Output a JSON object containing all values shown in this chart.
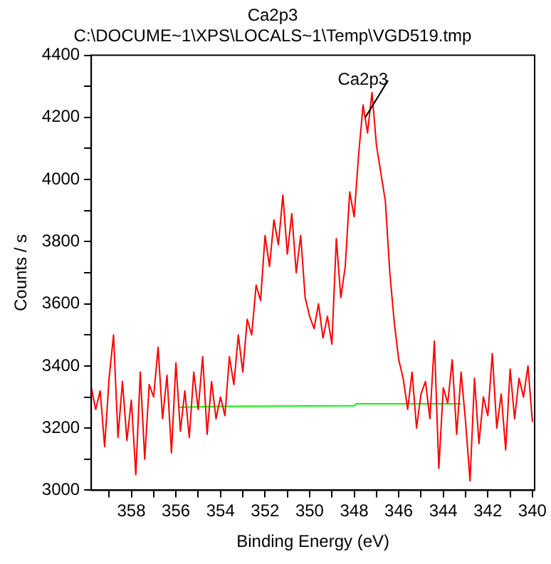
{
  "chart_data": {
    "type": "line",
    "title": "Ca2p3",
    "subtitle": "C:\\DOCUME~1\\XPS\\LOCALS~1\\Temp\\VGD519.tmp",
    "xlabel": "Binding Energy (eV)",
    "ylabel": "Counts / s",
    "xlim": [
      359.8,
      339.9
    ],
    "ylim": [
      3000,
      4400
    ],
    "xticks": [
      {
        "value": 359,
        "label": null
      },
      358,
      {
        "value": 357,
        "label": null
      },
      356,
      {
        "value": 355,
        "label": null
      },
      354,
      {
        "value": 353,
        "label": null
      },
      352,
      {
        "value": 351,
        "label": null
      },
      350,
      {
        "value": 349,
        "label": null
      },
      348,
      {
        "value": 347,
        "label": null
      },
      346,
      {
        "value": 345,
        "label": null
      },
      344,
      {
        "value": 343,
        "label": null
      },
      342,
      {
        "value": 341,
        "label": null
      },
      340
    ],
    "yticks": [
      3000,
      {
        "value": 3100,
        "label": null
      },
      3200,
      {
        "value": 3300,
        "label": null
      },
      3400,
      {
        "value": 3500,
        "label": null
      },
      3600,
      {
        "value": 3700,
        "label": null
      },
      3800,
      {
        "value": 3900,
        "label": null
      },
      4000,
      {
        "value": 4100,
        "label": null
      },
      4200,
      {
        "value": 4300,
        "label": null
      },
      4400
    ],
    "grid": false,
    "legend": false,
    "marker": "none",
    "annotations": [
      {
        "text": "Ca2p3",
        "x": 347.5,
        "y": 4200
      }
    ],
    "series": [
      {
        "color": "#ff0000",
        "x": [
          359.8,
          359.6,
          359.4,
          359.2,
          359.0,
          358.8,
          358.6,
          358.4,
          358.2,
          358.0,
          357.8,
          357.6,
          357.4,
          357.2,
          357.0,
          356.8,
          356.6,
          356.4,
          356.2,
          356.0,
          355.8,
          355.6,
          355.4,
          355.2,
          355.0,
          354.8,
          354.6,
          354.4,
          354.2,
          354.0,
          353.8,
          353.6,
          353.4,
          353.2,
          353.0,
          352.8,
          352.6,
          352.4,
          352.2,
          352.0,
          351.8,
          351.6,
          351.4,
          351.2,
          351.0,
          350.8,
          350.6,
          350.4,
          350.2,
          350.0,
          349.8,
          349.6,
          349.4,
          349.2,
          349.0,
          348.8,
          348.6,
          348.4,
          348.2,
          348.0,
          347.8,
          347.6,
          347.4,
          347.2,
          347.0,
          346.8,
          346.6,
          346.4,
          346.2,
          346.0,
          345.8,
          345.6,
          345.4,
          345.2,
          345.0,
          344.8,
          344.6,
          344.4,
          344.2,
          344.0,
          343.8,
          343.6,
          343.4,
          343.2,
          343.0,
          342.8,
          342.6,
          342.4,
          342.2,
          342.0,
          341.8,
          341.6,
          341.4,
          341.2,
          341.0,
          340.8,
          340.6,
          340.4,
          340.2,
          340.0
        ],
        "values": [
          3330,
          3260,
          3320,
          3140,
          3360,
          3500,
          3170,
          3350,
          3160,
          3290,
          3050,
          3380,
          3100,
          3340,
          3300,
          3460,
          3230,
          3370,
          3120,
          3410,
          3190,
          3320,
          3170,
          3380,
          3260,
          3430,
          3180,
          3350,
          3230,
          3300,
          3240,
          3430,
          3340,
          3500,
          3380,
          3550,
          3500,
          3660,
          3610,
          3820,
          3720,
          3870,
          3790,
          3950,
          3760,
          3890,
          3700,
          3820,
          3620,
          3560,
          3520,
          3600,
          3490,
          3560,
          3470,
          3810,
          3620,
          3720,
          3960,
          3880,
          4080,
          4240,
          4150,
          4280,
          4110,
          4020,
          3930,
          3700,
          3540,
          3420,
          3360,
          3260,
          3380,
          3200,
          3310,
          3350,
          3230,
          3480,
          3070,
          3330,
          3280,
          3420,
          3180,
          3380,
          3220,
          3030,
          3360,
          3150,
          3300,
          3240,
          3440,
          3200,
          3310,
          3130,
          3390,
          3230,
          3360,
          3300,
          3400,
          3220
        ]
      },
      {
        "color": "#00ff00",
        "x": [
          355.9,
          353.6,
          348.0,
          347.9,
          343.2
        ],
        "values": [
          3267,
          3270,
          3272,
          3278,
          3278
        ]
      }
    ]
  }
}
